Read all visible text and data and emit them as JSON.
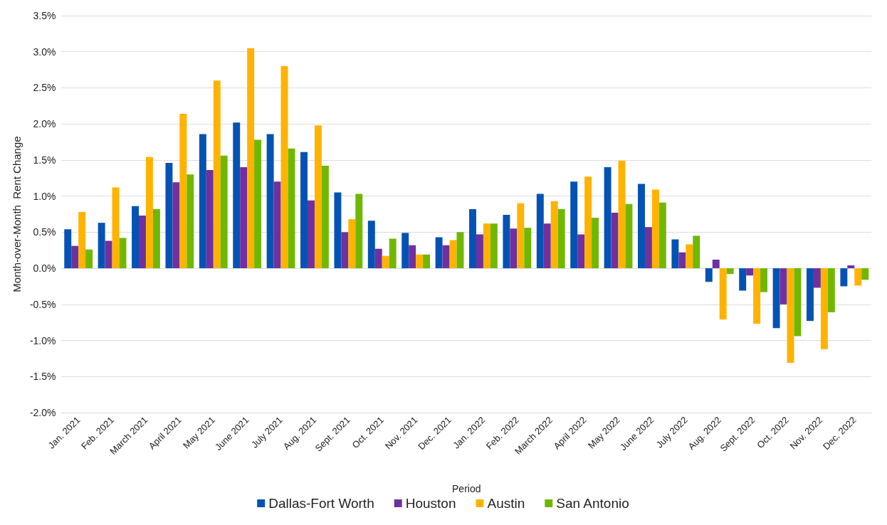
{
  "chart_data": {
    "type": "bar",
    "xlabel": "Period",
    "ylabel": "Month-over-Month  Rent Change",
    "categories": [
      "Jan. 2021",
      "Feb. 2021",
      "March 2021",
      "April 2021",
      "May 2021",
      "June 2021",
      "July 2021",
      "Aug. 2021",
      "Sept. 2021",
      "Oct. 2021",
      "Nov. 2021",
      "Dec. 2021",
      "Jan. 2022",
      "Feb. 2022",
      "March 2022",
      "April 2022",
      "May 2022",
      "June 2022",
      "July 2022",
      "Aug. 2022",
      "Sept. 2022",
      "Oct. 2022",
      "Nov. 2022",
      "Dec. 2022"
    ],
    "series": [
      {
        "name": "Dallas-Fort Worth",
        "color": "#0453b4",
        "values": [
          0.54,
          0.63,
          0.86,
          1.46,
          1.86,
          2.02,
          1.86,
          1.61,
          1.05,
          0.66,
          0.49,
          0.43,
          0.82,
          0.74,
          1.03,
          1.2,
          1.4,
          1.17,
          0.4,
          -0.19,
          -0.31,
          -0.83,
          -0.73,
          -0.25
        ]
      },
      {
        "name": "Houston",
        "color": "#7030a0",
        "values": [
          0.31,
          0.38,
          0.73,
          1.19,
          1.36,
          1.4,
          1.2,
          0.94,
          0.5,
          0.27,
          0.32,
          0.32,
          0.47,
          0.55,
          0.62,
          0.47,
          0.77,
          0.57,
          0.22,
          0.12,
          -0.1,
          -0.5,
          -0.27,
          0.04
        ]
      },
      {
        "name": "Austin",
        "color": "#ffb300",
        "values": [
          0.78,
          1.12,
          1.54,
          2.14,
          2.6,
          3.05,
          2.8,
          1.98,
          0.68,
          0.17,
          0.19,
          0.39,
          0.62,
          0.9,
          0.93,
          1.27,
          1.49,
          1.09,
          0.33,
          -0.71,
          -0.77,
          -1.31,
          -1.12,
          -0.24
        ]
      },
      {
        "name": "San Antonio",
        "color": "#70b800",
        "values": [
          0.26,
          0.42,
          0.82,
          1.3,
          1.56,
          1.78,
          1.66,
          1.42,
          1.03,
          0.41,
          0.19,
          0.5,
          0.62,
          0.56,
          0.82,
          0.7,
          0.89,
          0.91,
          0.45,
          -0.08,
          -0.33,
          -0.94,
          -0.61,
          -0.16
        ]
      }
    ],
    "ylim": [
      -2,
      3.5
    ],
    "yticks": [
      {
        "value": -2,
        "label": "-2.0%"
      },
      {
        "value": -1.5,
        "label": "-1.5%"
      },
      {
        "value": -1,
        "label": "-1.0%"
      },
      {
        "value": -0.5,
        "label": "-0.5%"
      },
      {
        "value": 0,
        "label": "0.0%"
      },
      {
        "value": 0.5,
        "label": "0.5%"
      },
      {
        "value": 1,
        "label": "1.0%"
      },
      {
        "value": 1.5,
        "label": "1.5%"
      },
      {
        "value": 2,
        "label": "2.0%"
      },
      {
        "value": 2.5,
        "label": "2.5%"
      },
      {
        "value": 3,
        "label": "3.0%"
      },
      {
        "value": 3.5,
        "label": "3.5%"
      }
    ],
    "grid": "y",
    "legend": "bottom"
  }
}
